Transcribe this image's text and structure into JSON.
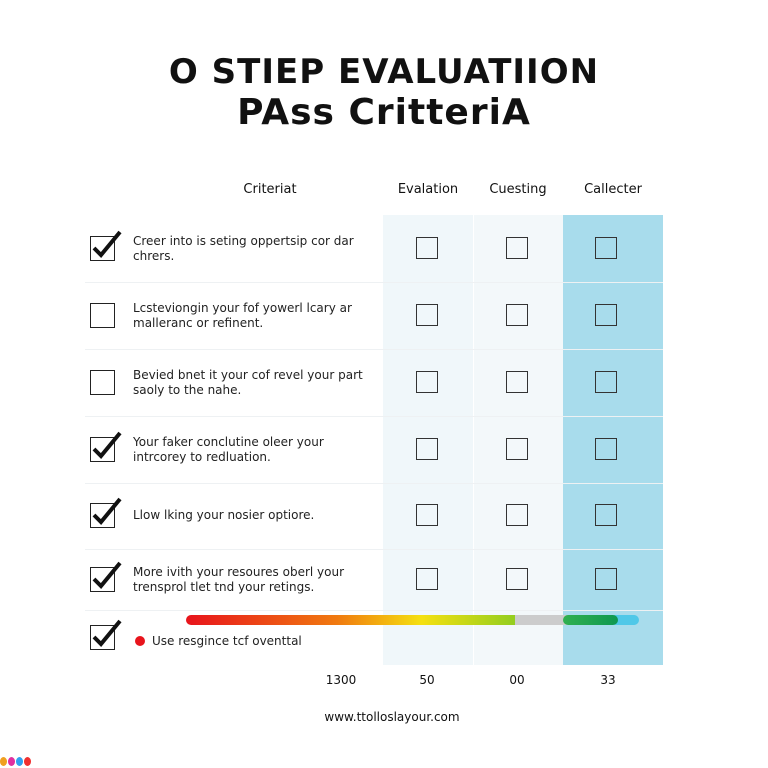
{
  "title": {
    "line1": "O STIEP EVALUATIION",
    "line2": "PAss CritteriA"
  },
  "columns": [
    "Criteriat",
    "Evalation",
    "Cuesting",
    "Callecter"
  ],
  "colors": {
    "highlight_column": "#a8dcec",
    "light_column": "#f0f7fa",
    "checkbox": "#333333"
  },
  "rows": [
    {
      "checked": true,
      "text": "Creer into is seting oppertsip cor dar chrers."
    },
    {
      "checked": false,
      "text": "Lcsteviongin your fof yowerl lcary ar malleranc or refinent."
    },
    {
      "checked": false,
      "text": "Bevied bnet it your cof revel your part saoly to the nahe."
    },
    {
      "checked": true,
      "text": "Your faker conclutine oleer your intrcorey to redluation."
    },
    {
      "checked": true,
      "text": "Llow lking your nosier optiore."
    },
    {
      "checked": true,
      "text": "More ivith your resoures oberl your trensprol tlet tnd your retings."
    }
  ],
  "last_row": {
    "checked": true,
    "legend_dot_color": "#e8141c",
    "legend_text": "Use resgince tcf oventtal"
  },
  "gradient_bar": {
    "colors": [
      "#e8141c",
      "#f07a10",
      "#f5e010",
      "#8ccc20",
      "#cccccc",
      "#20a850",
      "#50c8e8"
    ]
  },
  "totals": [
    "1300",
    "50",
    "00",
    "33"
  ],
  "footer_url": "www.ttolloslayour.com",
  "logo_dots": [
    "#f0a020",
    "#e030a0",
    "#30a0f0",
    "#f03030"
  ]
}
